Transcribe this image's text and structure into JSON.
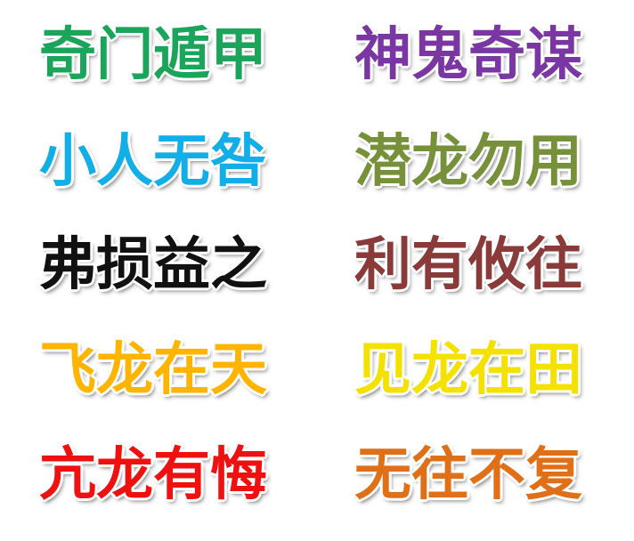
{
  "phrases": {
    "qimen_dunjia": {
      "text": "奇门遁甲",
      "color": "#1aa55a"
    },
    "shengui_qimou": {
      "text": "神鬼奇谋",
      "color": "#7a37a3"
    },
    "xiaoren_wujiu": {
      "text": "小人无咎",
      "color": "#12aee8"
    },
    "qianlong_wuyong": {
      "text": "潜龙勿用",
      "color": "#77913a"
    },
    "fusun_yizhi": {
      "text": "弗损益之",
      "color": "#111111"
    },
    "liyou_youwang": {
      "text": "利有攸往",
      "color": "#8b3a3a"
    },
    "feilong_zaitian": {
      "text": "飞龙在天",
      "color": "#ffb400"
    },
    "jianlong_zaitian": {
      "text": "见龙在田",
      "color": "#f5e100"
    },
    "kanglong_youhui": {
      "text": "亢龙有悔",
      "color": "#ef1010"
    },
    "wuwang_bufu": {
      "text": "无往不复",
      "color": "#e07017"
    }
  }
}
